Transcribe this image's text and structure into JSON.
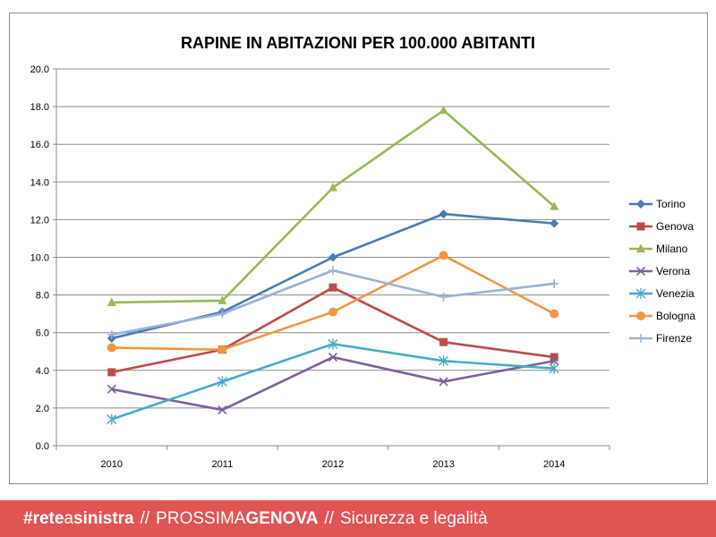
{
  "chart_data": {
    "type": "line",
    "title": "RAPINE IN ABITAZIONI PER 100.000 ABITANTI",
    "xlabel": "",
    "ylabel": "",
    "x": [
      "2010",
      "2011",
      "2012",
      "2013",
      "2014"
    ],
    "ylim": [
      0,
      20
    ],
    "yticks": [
      "0.0",
      "2.0",
      "4.0",
      "6.0",
      "8.0",
      "10.0",
      "12.0",
      "14.0",
      "16.0",
      "18.0",
      "20.0"
    ],
    "grid": true,
    "legend_position": "right",
    "series": [
      {
        "name": "Torino",
        "values": [
          5.7,
          7.1,
          10.0,
          12.3,
          11.8
        ],
        "color": "#4a7ab8",
        "marker": "diamond"
      },
      {
        "name": "Genova",
        "values": [
          3.9,
          5.1,
          8.4,
          5.5,
          4.7
        ],
        "color": "#be4b48",
        "marker": "square"
      },
      {
        "name": "Milano",
        "values": [
          7.6,
          7.7,
          13.7,
          17.8,
          12.7
        ],
        "color": "#98b954",
        "marker": "triangle"
      },
      {
        "name": "Verona",
        "values": [
          3.0,
          1.9,
          4.7,
          3.4,
          4.5
        ],
        "color": "#7d60a0",
        "marker": "x"
      },
      {
        "name": "Venezia",
        "values": [
          1.4,
          3.4,
          5.4,
          4.5,
          4.1
        ],
        "color": "#46aac5",
        "marker": "star"
      },
      {
        "name": "Bologna",
        "values": [
          5.2,
          5.1,
          7.1,
          10.1,
          7.0
        ],
        "color": "#f29642",
        "marker": "circle"
      },
      {
        "name": "Firenze",
        "values": [
          5.9,
          7.0,
          9.3,
          7.9,
          8.6
        ],
        "color": "#9cb2d6",
        "marker": "plus"
      }
    ]
  },
  "footer": {
    "hashtag": "#",
    "brand_rete": "rete",
    "brand_a": "a",
    "brand_sinistra": "sinistra",
    "separator": "//",
    "prossima": "PROSSIMA",
    "genova": "GENOVA",
    "tagline": "Sicurezza e legalità",
    "background_color": "#e05554"
  }
}
